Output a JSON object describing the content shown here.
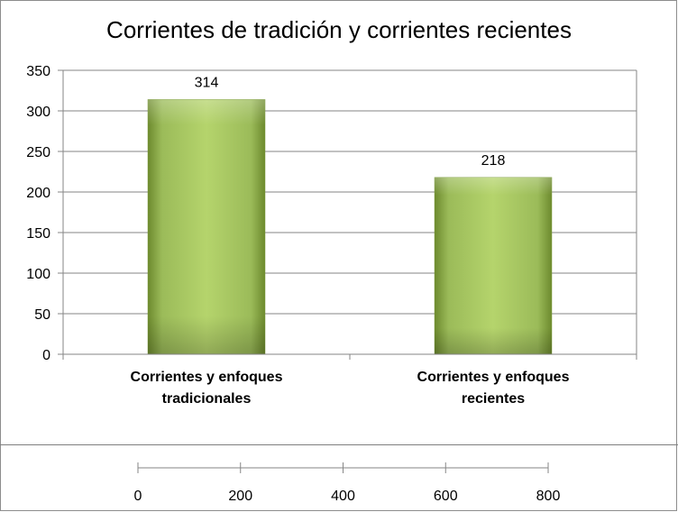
{
  "chart_data": [
    {
      "type": "bar",
      "title": "Corrientes de tradición y corrientes recientes",
      "categories": [
        [
          "Corrientes y enfoques",
          "tradicionales"
        ],
        [
          "Corrientes y enfoques",
          "recientes"
        ]
      ],
      "values": [
        314,
        218
      ],
      "data_labels": [
        "314",
        "218"
      ],
      "yticks": [
        "0",
        "50",
        "100",
        "150",
        "200",
        "250",
        "300",
        "350"
      ],
      "ylim": [
        0,
        350
      ],
      "grid": true,
      "legend": "none",
      "color": "#9bbb59"
    },
    {
      "type": "bar",
      "xticks": [
        "0",
        "200",
        "400",
        "600",
        "800"
      ],
      "xlim": [
        0,
        800
      ],
      "series": []
    }
  ]
}
